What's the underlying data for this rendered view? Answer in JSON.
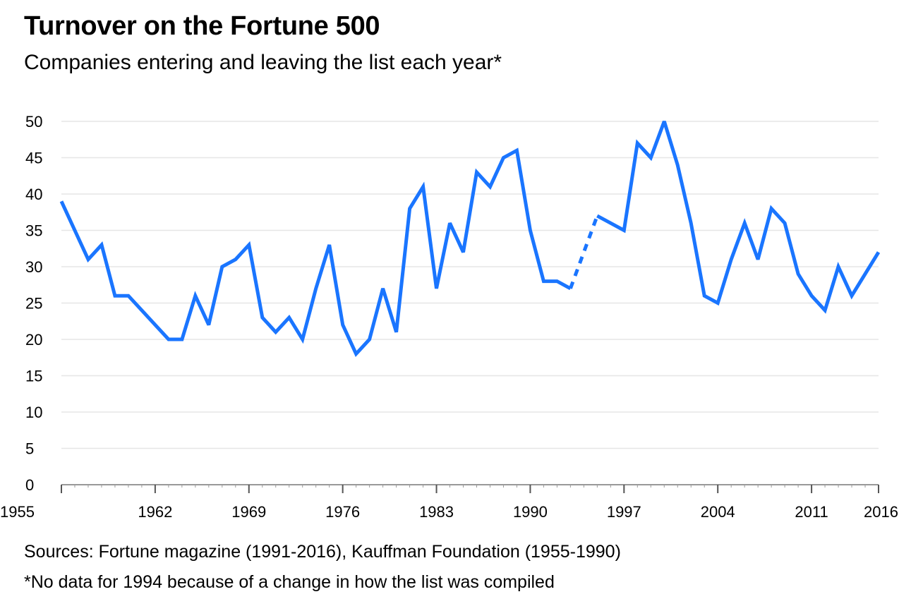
{
  "title": "Turnover on the Fortune 500",
  "subtitle": "Companies entering and leaving the list each year*",
  "source": "Sources: Fortune magazine (1991-2016), Kauffman Foundation (1955-1990)",
  "footnote": "*No data for 1994 because of a change in how the list was compiled",
  "colors": {
    "line": "#1a75ff",
    "grid": "#e6e6e6",
    "axis": "#999999"
  },
  "chart_data": {
    "type": "line",
    "title": "Turnover on the Fortune 500",
    "subtitle": "Companies entering and leaving the list each year*",
    "xlabel": "",
    "ylabel": "",
    "xlim": [
      1955,
      2016
    ],
    "ylim": [
      0,
      50
    ],
    "grid": true,
    "legend": "none",
    "x_ticks": [
      1955,
      1962,
      1969,
      1976,
      1983,
      1990,
      1997,
      2004,
      2011,
      2016
    ],
    "y_ticks": [
      0,
      5,
      10,
      15,
      20,
      25,
      30,
      35,
      40,
      45,
      50
    ],
    "gap_years": [
      1994
    ],
    "series": [
      {
        "points": [
          [
            1955,
            39
          ],
          [
            1956,
            35
          ],
          [
            1957,
            31
          ],
          [
            1958,
            33
          ],
          [
            1959,
            26
          ],
          [
            1960,
            26
          ],
          [
            1961,
            24
          ],
          [
            1962,
            22
          ],
          [
            1963,
            20
          ],
          [
            1964,
            20
          ],
          [
            1965,
            26
          ],
          [
            1966,
            22
          ],
          [
            1967,
            30
          ],
          [
            1968,
            31
          ],
          [
            1969,
            33
          ],
          [
            1970,
            23
          ],
          [
            1971,
            21
          ],
          [
            1972,
            23
          ],
          [
            1973,
            20
          ],
          [
            1974,
            27
          ],
          [
            1975,
            33
          ],
          [
            1976,
            22
          ],
          [
            1977,
            18
          ],
          [
            1978,
            20
          ],
          [
            1979,
            27
          ],
          [
            1980,
            21
          ],
          [
            1981,
            38
          ],
          [
            1982,
            41
          ],
          [
            1983,
            27
          ],
          [
            1984,
            36
          ],
          [
            1985,
            32
          ],
          [
            1986,
            43
          ],
          [
            1987,
            41
          ],
          [
            1988,
            45
          ],
          [
            1989,
            46
          ],
          [
            1990,
            35
          ],
          [
            1991,
            28
          ],
          [
            1992,
            28
          ],
          [
            1993,
            27
          ],
          [
            1995,
            37
          ],
          [
            1996,
            36
          ],
          [
            1997,
            35
          ],
          [
            1998,
            47
          ],
          [
            1999,
            45
          ],
          [
            2000,
            50
          ],
          [
            2001,
            44
          ],
          [
            2002,
            36
          ],
          [
            2003,
            26
          ],
          [
            2004,
            25
          ],
          [
            2005,
            31
          ],
          [
            2006,
            36
          ],
          [
            2007,
            31
          ],
          [
            2008,
            38
          ],
          [
            2009,
            36
          ],
          [
            2010,
            29
          ],
          [
            2011,
            26
          ],
          [
            2012,
            24
          ],
          [
            2013,
            30
          ],
          [
            2014,
            26
          ],
          [
            2015,
            29
          ],
          [
            2016,
            32
          ]
        ]
      }
    ]
  }
}
